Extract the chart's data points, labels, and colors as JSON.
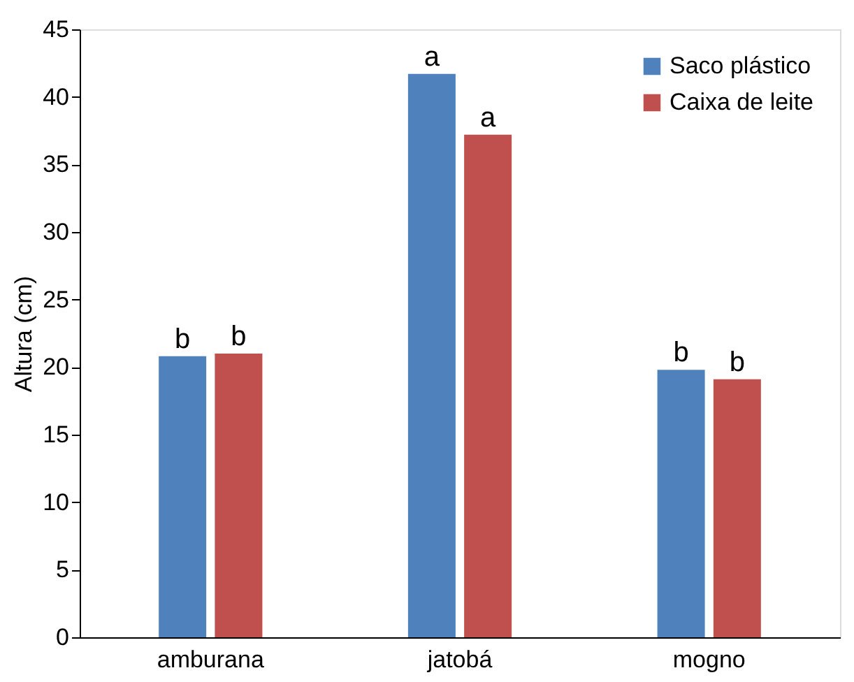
{
  "chart_data": {
    "type": "bar",
    "ylabel": "Altura (cm)",
    "categories": [
      "amburana",
      "jatobá",
      "mogno"
    ],
    "series": [
      {
        "name": "Saco plástico",
        "color": "#4f81bd",
        "values": [
          20.8,
          41.7,
          19.8
        ],
        "value_labels": [
          "b",
          "a",
          "b"
        ]
      },
      {
        "name": "Caixa de leite",
        "color": "#c0504d",
        "values": [
          21.0,
          37.2,
          19.1
        ],
        "value_labels": [
          "b",
          "a",
          "b"
        ]
      }
    ],
    "ylim": [
      0,
      45
    ],
    "yticks": [
      0,
      5,
      10,
      15,
      20,
      25,
      30,
      35,
      40,
      45
    ],
    "grid": false,
    "legend": "top right"
  }
}
